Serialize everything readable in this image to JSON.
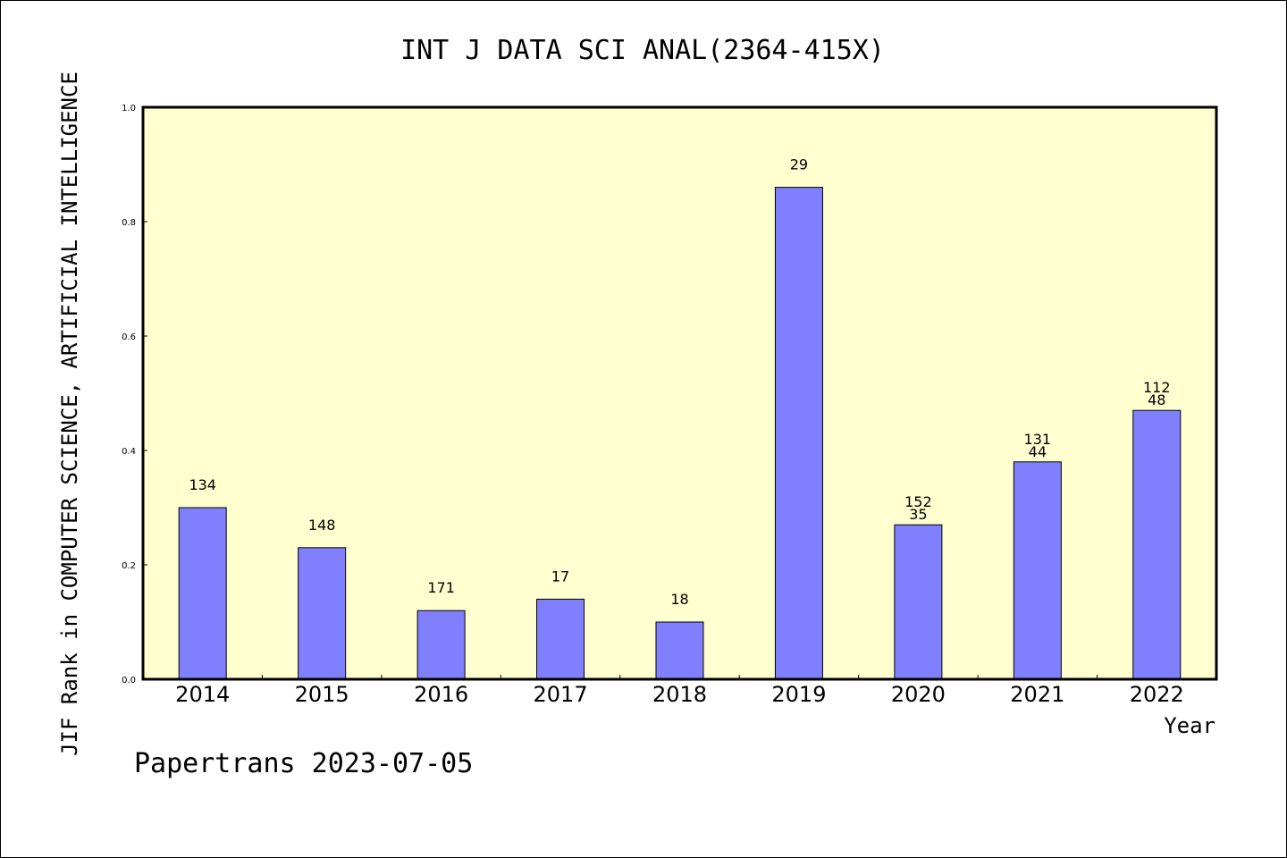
{
  "chart_data": {
    "type": "bar",
    "title": "INT J DATA SCI ANAL(2364-415X)",
    "xlabel": "Year",
    "ylabel": "JIF Rank in COMPUTER SCIENCE, ARTIFICIAL INTELLIGENCE",
    "categories": [
      "2014",
      "2015",
      "2016",
      "2017",
      "2018",
      "2019",
      "2020",
      "2021",
      "2022"
    ],
    "values": [
      0.3,
      0.23,
      0.12,
      0.14,
      0.1,
      0.86,
      0.27,
      0.38,
      0.47
    ],
    "bar_labels": [
      [
        "134"
      ],
      [
        "148"
      ],
      [
        "171"
      ],
      [
        "17"
      ],
      [
        "18"
      ],
      [
        "29"
      ],
      [
        "152",
        "35"
      ],
      [
        "131",
        "44"
      ],
      [
        "112",
        "48"
      ]
    ],
    "ylim": [
      0,
      1.0
    ],
    "yticks": [
      "0.0",
      "0.2",
      "0.4",
      "0.6",
      "0.8",
      "1.0"
    ],
    "grid": false,
    "colors": {
      "bar_fill": "#8080ff",
      "plot_background": "#ffffd0"
    }
  },
  "footer": "Papertrans 2023-07-05"
}
